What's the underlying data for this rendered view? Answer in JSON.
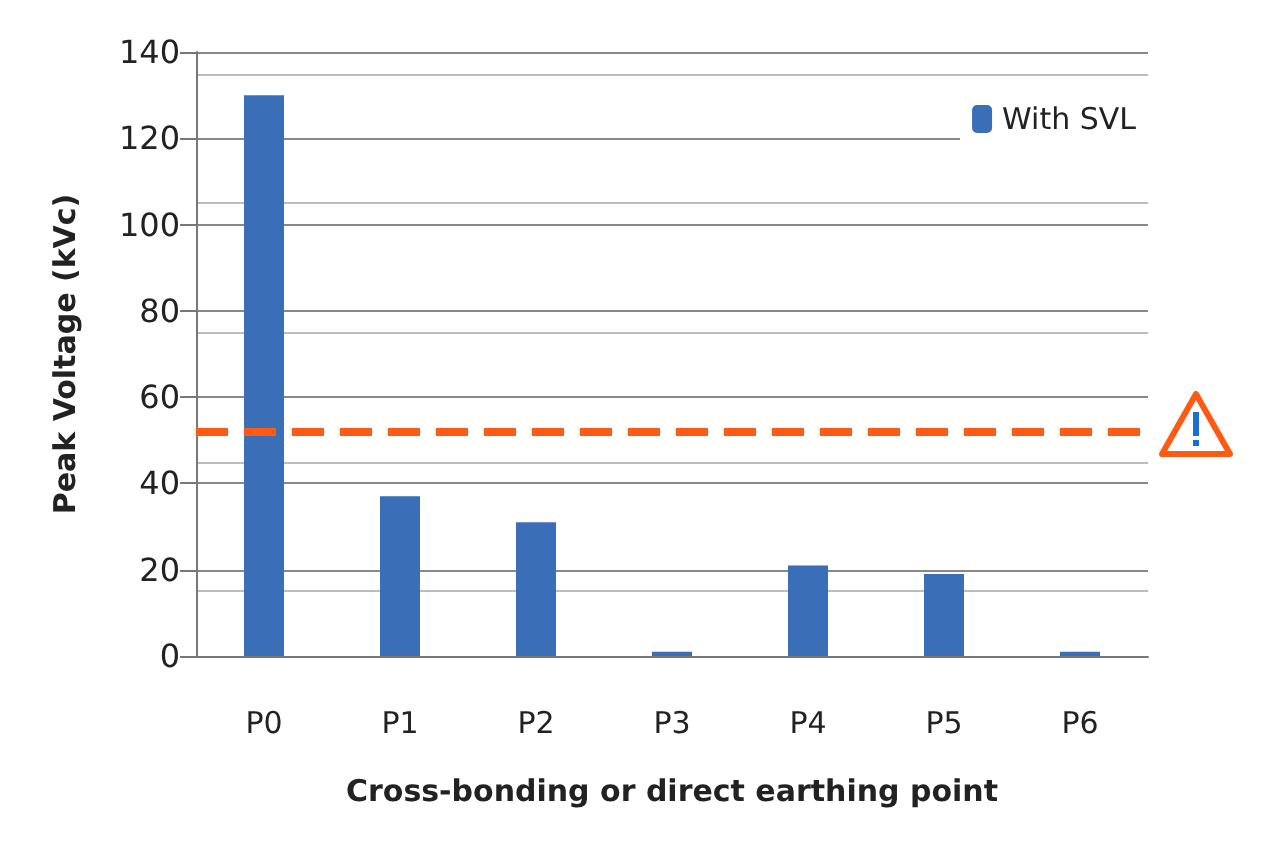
{
  "chart_data": {
    "type": "bar",
    "xlabel": "Cross-bonding or direct earthing point",
    "ylabel": "Peak Voltage (kVc)",
    "categories": [
      "P0",
      "P1",
      "P2",
      "P3",
      "P4",
      "P5",
      "P6"
    ],
    "series": [
      {
        "name": "With SVL",
        "color": "#3a6fb8",
        "values": [
          130,
          37,
          31,
          1,
          21,
          19,
          1
        ]
      }
    ],
    "ylim": [
      0,
      140
    ],
    "yticks": [
      0,
      20,
      40,
      60,
      80,
      100,
      120,
      140
    ],
    "grid": true,
    "legend": "top right",
    "ref_lines": [
      {
        "axis": "y",
        "value": 52,
        "color": "#ff5a14",
        "line_style": "dashed"
      }
    ]
  }
}
